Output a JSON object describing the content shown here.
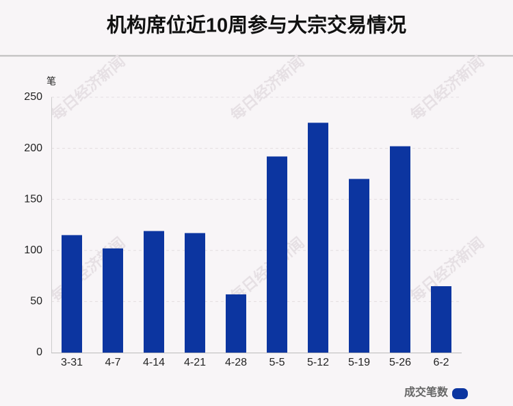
{
  "chart_data": {
    "type": "bar",
    "title": "机构席位近10周参与大宗交易情况",
    "y_label": "笔",
    "categories": [
      "3-31",
      "4-7",
      "4-14",
      "4-21",
      "4-28",
      "5-5",
      "5-12",
      "5-19",
      "5-26",
      "6-2"
    ],
    "series": [
      {
        "name": "成交笔数",
        "color": "#0c35a0",
        "values": [
          115,
          102,
          119,
          117,
          57,
          192,
          225,
          170,
          202,
          65
        ]
      }
    ],
    "ylim": [
      0,
      250
    ],
    "yticks": [
      0,
      50,
      100,
      150,
      200,
      250
    ],
    "grid": true,
    "legend": "bottom-right",
    "watermark": "每日经济新闻"
  }
}
